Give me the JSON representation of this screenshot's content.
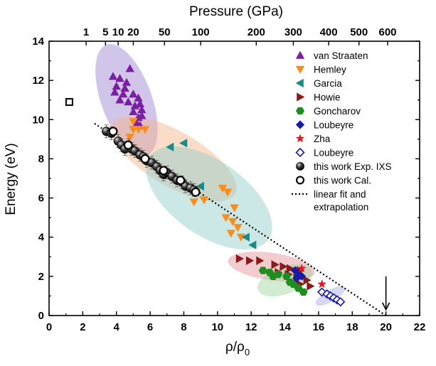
{
  "chart_data": {
    "type": "scatter",
    "xlabel": "ρ/ρ",
    "xlabel_sub": "0",
    "ylabel": "Energy (eV)",
    "top_axis_label": "Pressure (GPa)",
    "xlim": [
      0,
      22
    ],
    "ylim": [
      0,
      14
    ],
    "x_ticks": [
      0,
      2,
      4,
      6,
      8,
      10,
      12,
      14,
      16,
      18,
      20,
      22
    ],
    "y_ticks": [
      0,
      2,
      4,
      6,
      8,
      10,
      12,
      14
    ],
    "top_ticks": [
      {
        "label": "1",
        "x": 2.2
      },
      {
        "label": "5",
        "x": 3.35
      },
      {
        "label": "10",
        "x": 4.1
      },
      {
        "label": "20",
        "x": 5.0
      },
      {
        "label": "50",
        "x": 6.85
      },
      {
        "label": "100",
        "x": 9.0
      },
      {
        "label": "200",
        "x": 12.3
      },
      {
        "label": "300",
        "x": 14.5
      },
      {
        "label": "400",
        "x": 16.6
      },
      {
        "label": "500",
        "x": 18.4
      },
      {
        "label": "600",
        "x": 20.1
      }
    ],
    "legend_position": "top-right",
    "series": [
      {
        "name": "van Straaten",
        "marker": "triangle-up",
        "color": "#7b1fa2",
        "filled": true,
        "points": [
          [
            3.8,
            12.2
          ],
          [
            4.0,
            11.7
          ],
          [
            4.2,
            12.1
          ],
          [
            4.4,
            11.3
          ],
          [
            4.6,
            11.9
          ],
          [
            4.8,
            12.6
          ],
          [
            3.9,
            11.4
          ],
          [
            4.2,
            11.0
          ],
          [
            4.5,
            11.6
          ],
          [
            5.0,
            11.3
          ],
          [
            4.7,
            10.9
          ],
          [
            5.1,
            10.7
          ],
          [
            5.4,
            10.8
          ],
          [
            5.0,
            10.4
          ],
          [
            5.3,
            10.1
          ],
          [
            5.5,
            10.2
          ],
          [
            5.2,
            9.8
          ],
          [
            5.4,
            9.7
          ],
          [
            5.3,
            11.1
          ],
          [
            5.5,
            10.5
          ]
        ]
      },
      {
        "name": "Hemley",
        "marker": "triangle-down",
        "color": "#ff8c1a",
        "filled": true,
        "points": [
          [
            5.0,
            9.9
          ],
          [
            5.0,
            9.5
          ],
          [
            5.3,
            9.5
          ],
          [
            5.7,
            9.5
          ],
          [
            4.8,
            9.1
          ],
          [
            8.8,
            6.4
          ],
          [
            9.2,
            5.9
          ],
          [
            8.6,
            5.8
          ],
          [
            10.3,
            6.5
          ],
          [
            10.6,
            6.3
          ],
          [
            11.0,
            5.5
          ],
          [
            10.5,
            5.0
          ],
          [
            10.9,
            4.8
          ],
          [
            11.2,
            4.5
          ],
          [
            10.8,
            4.2
          ],
          [
            11.4,
            4.0
          ]
        ]
      },
      {
        "name": "Garcia",
        "marker": "triangle-left",
        "color": "#1a8a86",
        "filled": true,
        "points": [
          [
            7.2,
            8.6
          ],
          [
            8.0,
            8.8
          ],
          [
            9.0,
            6.6
          ],
          [
            11.7,
            4.0
          ],
          [
            12.1,
            3.6
          ]
        ]
      },
      {
        "name": "Howie",
        "marker": "triangle-right",
        "color": "#8b1a1a",
        "filled": true,
        "points": [
          [
            11.3,
            2.9
          ],
          [
            11.9,
            2.8
          ],
          [
            12.5,
            2.8
          ],
          [
            13.4,
            2.6
          ],
          [
            13.9,
            2.5
          ],
          [
            14.3,
            2.4
          ],
          [
            14.9,
            2.3
          ],
          [
            13.6,
            2.2
          ],
          [
            14.2,
            2.1
          ],
          [
            14.7,
            1.9
          ],
          [
            15.3,
            1.8
          ],
          [
            14.9,
            1.6
          ],
          [
            15.5,
            1.5
          ]
        ]
      },
      {
        "name": "Goncharov",
        "marker": "hexagon",
        "color": "#1e8c1e",
        "filled": true,
        "points": [
          [
            12.7,
            2.3
          ],
          [
            13.1,
            2.2
          ],
          [
            13.6,
            2.1
          ],
          [
            14.1,
            2.0
          ],
          [
            14.5,
            1.6
          ],
          [
            14.8,
            1.4
          ],
          [
            15.1,
            1.2
          ],
          [
            13.3,
            2.0
          ],
          [
            14.3,
            1.7
          ]
        ]
      },
      {
        "name": "Loubeyre",
        "marker": "diamond",
        "color": "#1a1aa6",
        "filled": true,
        "points": [
          [
            14.6,
            2.3
          ],
          [
            14.8,
            2.1
          ],
          [
            15.0,
            2.0
          ],
          [
            14.7,
            1.9
          ]
        ]
      },
      {
        "name": "Zha",
        "marker": "star",
        "color": "#e8141e",
        "filled": true,
        "points": [
          [
            15.0,
            2.4
          ],
          [
            16.2,
            1.6
          ]
        ]
      },
      {
        "name": "Loubeyre",
        "marker": "diamond",
        "color": "#1a1aa6",
        "filled": false,
        "points": [
          [
            16.2,
            1.2
          ],
          [
            16.5,
            1.1
          ],
          [
            16.7,
            1.0
          ],
          [
            16.9,
            0.9
          ],
          [
            17.1,
            0.8
          ],
          [
            17.3,
            0.7
          ]
        ]
      },
      {
        "name": "this work Exp. IXS",
        "marker": "ball",
        "color": "#000000",
        "filled": true,
        "error_bars": true,
        "points": [
          [
            3.4,
            9.4
          ],
          [
            3.7,
            9.3
          ],
          [
            4.1,
            8.9
          ],
          [
            4.3,
            8.7
          ],
          [
            4.5,
            8.5
          ],
          [
            4.7,
            8.7
          ],
          [
            4.9,
            8.5
          ],
          [
            5.1,
            8.4
          ],
          [
            5.4,
            8.2
          ],
          [
            5.6,
            8.1
          ],
          [
            5.8,
            7.9
          ],
          [
            6.1,
            7.8
          ],
          [
            6.4,
            7.6
          ],
          [
            6.6,
            7.4
          ],
          [
            6.8,
            7.2
          ],
          [
            7.0,
            7.3
          ],
          [
            7.3,
            7.1
          ],
          [
            7.6,
            6.9
          ],
          [
            7.9,
            6.8
          ],
          [
            8.1,
            6.6
          ],
          [
            8.4,
            6.5
          ],
          [
            8.6,
            6.4
          ]
        ]
      },
      {
        "name": "this work Cal.",
        "marker": "ring",
        "color": "#000000",
        "filled": false,
        "points": [
          [
            3.8,
            9.4
          ],
          [
            4.7,
            8.7
          ],
          [
            5.7,
            8.0
          ],
          [
            6.8,
            7.4
          ],
          [
            7.8,
            6.9
          ],
          [
            8.7,
            6.3
          ]
        ]
      },
      {
        "name": "linear fit and\nextrapolation",
        "marker": "dotted-line",
        "color": "#000000",
        "points": [
          [
            2.7,
            9.8
          ],
          [
            20.0,
            0.0
          ]
        ]
      }
    ],
    "extra_markers": [
      {
        "marker": "square-open",
        "color": "#000000",
        "point": [
          1.2,
          10.9
        ]
      },
      {
        "marker": "arrow-down",
        "color": "#000000",
        "x": 20.0,
        "y_from": 2.0,
        "y_to": 0.3
      }
    ],
    "regions": [
      {
        "color": "#9b7fd0",
        "cx": 4.6,
        "cy": 11.0,
        "rx": 1.5,
        "ry": 3.0,
        "angle": -20
      },
      {
        "color": "#f4b488",
        "cx": 7.4,
        "cy": 8.0,
        "rx": 4.2,
        "ry": 1.4,
        "angle": 30
      },
      {
        "color": "#8fcdc7",
        "cx": 9.5,
        "cy": 6.0,
        "rx": 4.3,
        "ry": 1.9,
        "angle": 35
      },
      {
        "color": "#e58d97",
        "cx": 13.2,
        "cy": 2.5,
        "rx": 2.6,
        "ry": 0.7,
        "angle": 8
      },
      {
        "color": "#9dd39a",
        "cx": 14.0,
        "cy": 1.8,
        "rx": 1.7,
        "ry": 0.7,
        "angle": -20
      },
      {
        "color": "#a6a6e6",
        "cx": 16.7,
        "cy": 1.0,
        "rx": 1.0,
        "ry": 0.3,
        "angle": -30
      }
    ]
  }
}
